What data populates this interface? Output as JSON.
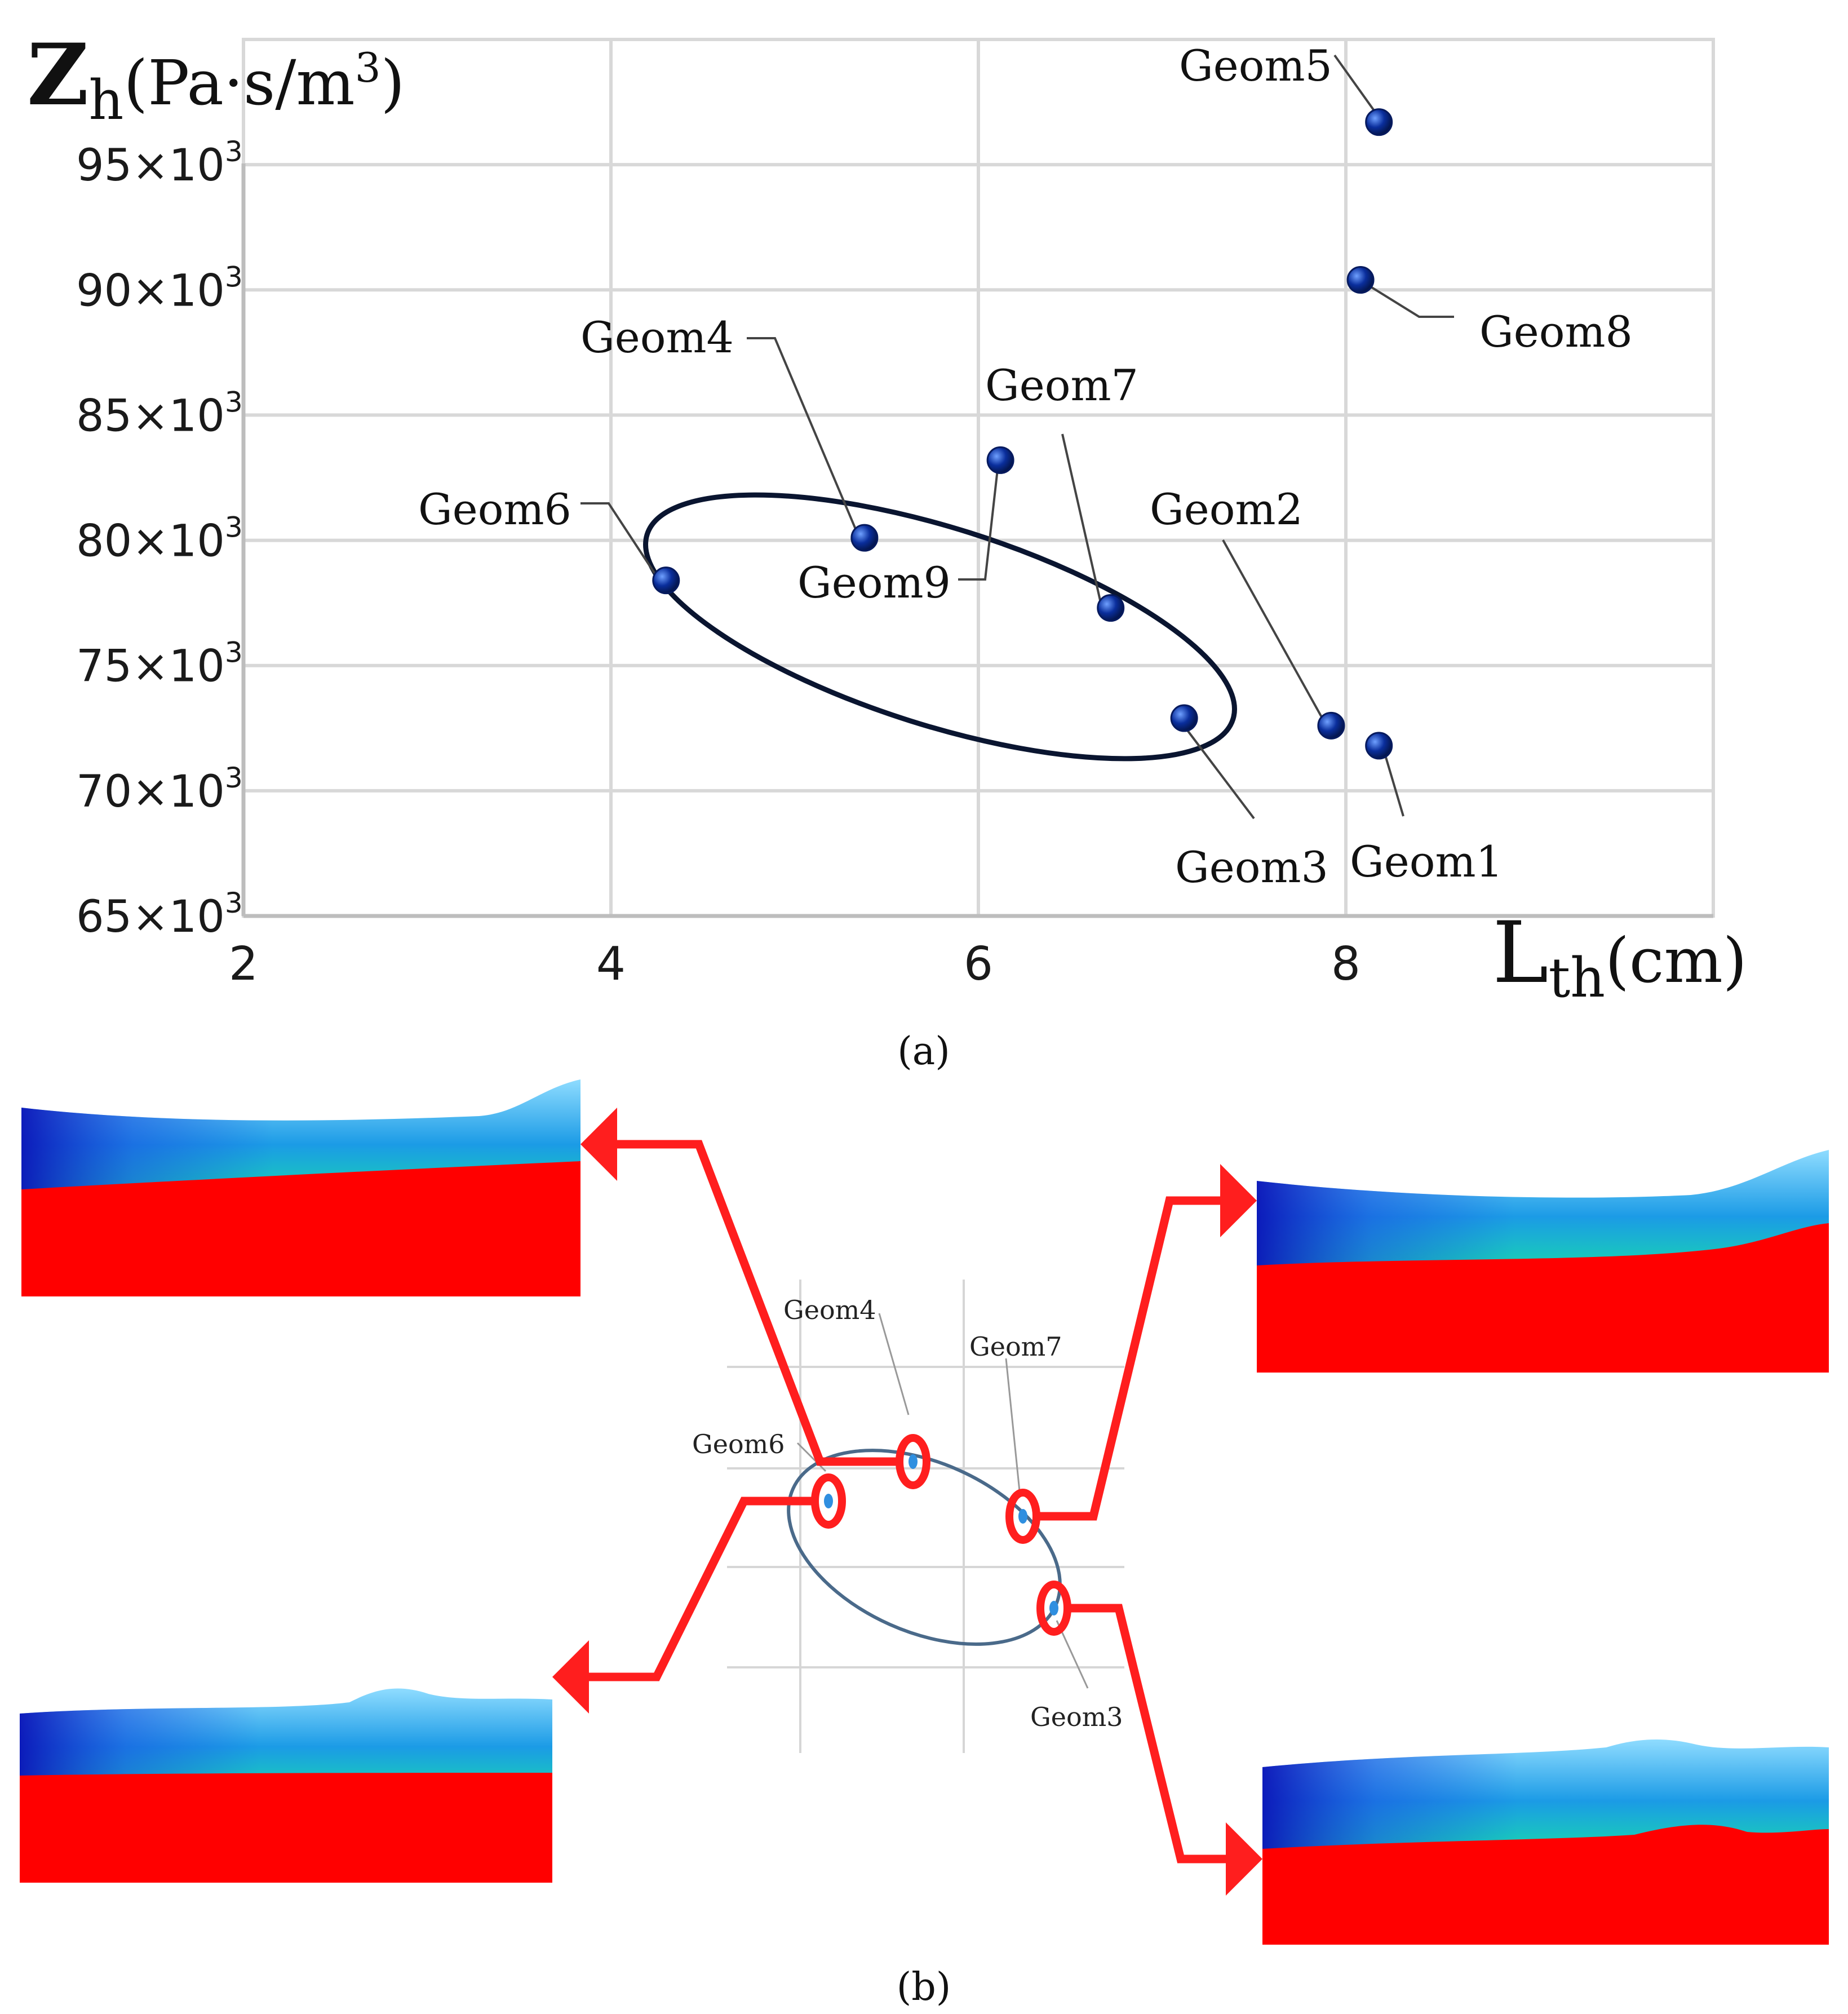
{
  "chart_data": {
    "type": "scatter",
    "title": "",
    "ylabel_main": "Z",
    "ylabel_sub": "h",
    "ylabel_units": "(Pa·s/m",
    "ylabel_sup": "3",
    "ylabel_close": ")",
    "xlabel_main": "L",
    "xlabel_sub": "th",
    "xlabel_units": "(cm)",
    "xlim": [
      2,
      10
    ],
    "ylim": [
      65000,
      100000
    ],
    "x_ticks": [
      {
        "value": 2,
        "label": "2"
      },
      {
        "value": 4,
        "label": "4"
      },
      {
        "value": 6,
        "label": "6"
      },
      {
        "value": 8,
        "label": "8"
      }
    ],
    "y_ticks": [
      {
        "value": 65000,
        "mant": "65×10",
        "exp": "3"
      },
      {
        "value": 70000,
        "mant": "70×10",
        "exp": "3"
      },
      {
        "value": 75000,
        "mant": "75×10",
        "exp": "3"
      },
      {
        "value": 80000,
        "mant": "80×10",
        "exp": "3"
      },
      {
        "value": 85000,
        "mant": "85×10",
        "exp": "3"
      },
      {
        "value": 90000,
        "mant": "90×10",
        "exp": "3"
      },
      {
        "value": 95000,
        "mant": "95×10",
        "exp": "3"
      }
    ],
    "grid": true,
    "points": [
      {
        "name": "Geom1",
        "x": 8.18,
        "y": 71800
      },
      {
        "name": "Geom2",
        "x": 7.92,
        "y": 72600
      },
      {
        "name": "Geom3",
        "x": 7.12,
        "y": 72900
      },
      {
        "name": "Geom4",
        "x": 5.38,
        "y": 80100
      },
      {
        "name": "Geom5",
        "x": 8.18,
        "y": 96700
      },
      {
        "name": "Geom6",
        "x": 4.3,
        "y": 78400
      },
      {
        "name": "Geom7",
        "x": 6.72,
        "y": 77300
      },
      {
        "name": "Geom8",
        "x": 8.08,
        "y": 90400
      },
      {
        "name": "Geom9",
        "x": 6.12,
        "y": 83200
      }
    ],
    "highlight_ellipse_members": [
      "Geom6",
      "Geom4",
      "Geom7",
      "Geom3"
    ],
    "panel_label": "(a)"
  },
  "inset": {
    "labels": [
      "Geom4",
      "Geom7",
      "Geom6",
      "Geom3"
    ],
    "panel_label": "(b)"
  },
  "colors": {
    "point": "#0a2e9c",
    "grid": "#d8d8d8",
    "ellipse": "#0a1530",
    "arrow": "#ff1e1e",
    "red": "#ff0000"
  }
}
